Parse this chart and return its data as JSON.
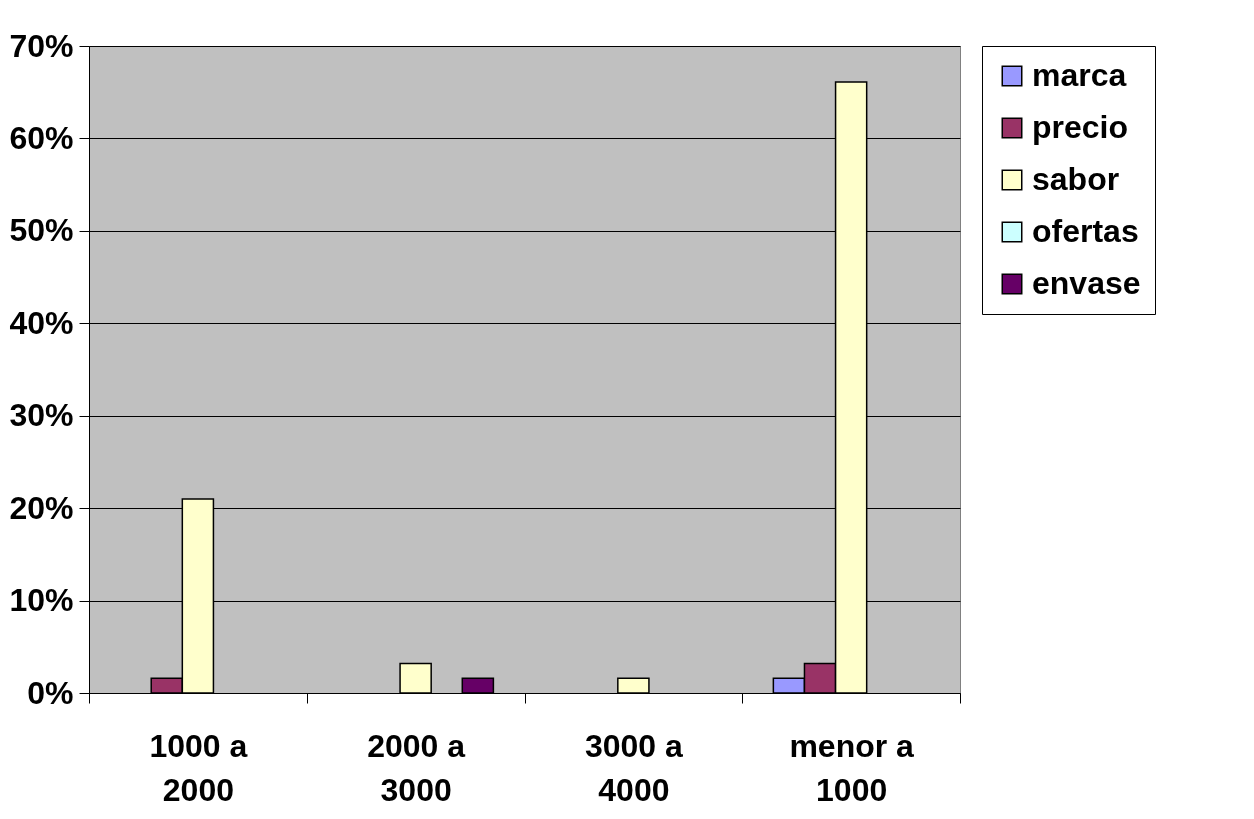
{
  "chart_data": {
    "type": "bar",
    "categories": [
      "1000 a 2000",
      "2000 a 3000",
      "3000 a 4000",
      "menor a 1000"
    ],
    "series": [
      {
        "name": "marca",
        "color": "#9999ff",
        "values": [
          null,
          null,
          null,
          1.6
        ]
      },
      {
        "name": "precio",
        "color": "#993366",
        "values": [
          1.6,
          null,
          null,
          3.2
        ]
      },
      {
        "name": "sabor",
        "color": "#ffffcc",
        "values": [
          21.0,
          3.2,
          1.6,
          66.1
        ]
      },
      {
        "name": "ofertas",
        "color": "#ccffff",
        "values": [
          null,
          null,
          null,
          null
        ]
      },
      {
        "name": "envase",
        "color": "#660066",
        "values": [
          null,
          1.6,
          null,
          null
        ]
      }
    ],
    "ylim": [
      0,
      70
    ],
    "yticks": [
      {
        "value": 0,
        "label": "0%"
      },
      {
        "value": 10,
        "label": "10%"
      },
      {
        "value": 20,
        "label": "20%"
      },
      {
        "value": 30,
        "label": "30%"
      },
      {
        "value": 40,
        "label": "40%"
      },
      {
        "value": 50,
        "label": "50%"
      },
      {
        "value": 60,
        "label": "60%"
      },
      {
        "value": 70,
        "label": "70%"
      }
    ],
    "grid": "y",
    "legend": "right"
  }
}
